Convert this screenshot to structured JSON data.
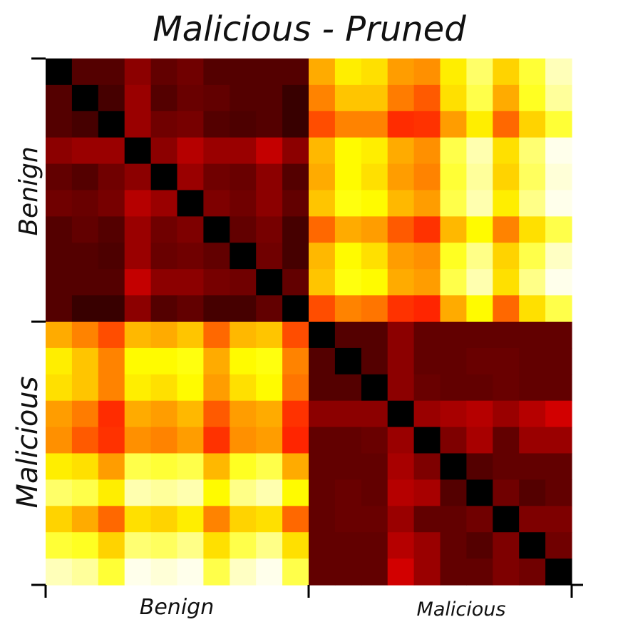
{
  "chart_data": {
    "type": "heatmap",
    "title": "Malicious - Pruned",
    "colormap": "hot",
    "value_range": [
      0,
      1
    ],
    "row_groups": [
      {
        "label": "Benign",
        "count": 10
      },
      {
        "label": "Malicious",
        "count": 10
      }
    ],
    "col_groups": [
      {
        "label": "Benign",
        "count": 10
      },
      {
        "label": "Malicious",
        "count": 10
      }
    ],
    "matrix": [
      [
        0.0,
        0.12,
        0.12,
        0.2,
        0.14,
        0.16,
        0.12,
        0.12,
        0.12,
        0.12,
        0.62,
        0.72,
        0.7,
        0.6,
        0.58,
        0.72,
        0.85,
        0.68,
        0.8,
        0.93
      ],
      [
        0.12,
        0.0,
        0.1,
        0.22,
        0.12,
        0.15,
        0.14,
        0.12,
        0.12,
        0.08,
        0.56,
        0.66,
        0.66,
        0.55,
        0.5,
        0.7,
        0.82,
        0.62,
        0.78,
        0.9
      ],
      [
        0.12,
        0.1,
        0.0,
        0.22,
        0.16,
        0.17,
        0.12,
        0.11,
        0.12,
        0.08,
        0.48,
        0.56,
        0.56,
        0.43,
        0.44,
        0.6,
        0.72,
        0.52,
        0.68,
        0.8
      ],
      [
        0.2,
        0.22,
        0.22,
        0.0,
        0.2,
        0.26,
        0.22,
        0.22,
        0.28,
        0.2,
        0.64,
        0.74,
        0.72,
        0.62,
        0.58,
        0.82,
        0.92,
        0.7,
        0.86,
        0.98
      ],
      [
        0.14,
        0.12,
        0.16,
        0.2,
        0.0,
        0.22,
        0.16,
        0.15,
        0.2,
        0.12,
        0.62,
        0.74,
        0.7,
        0.6,
        0.56,
        0.8,
        0.9,
        0.68,
        0.84,
        0.96
      ],
      [
        0.16,
        0.15,
        0.17,
        0.26,
        0.22,
        0.0,
        0.18,
        0.16,
        0.2,
        0.14,
        0.66,
        0.76,
        0.74,
        0.64,
        0.6,
        0.82,
        0.92,
        0.72,
        0.88,
        0.98
      ],
      [
        0.12,
        0.14,
        0.12,
        0.22,
        0.16,
        0.18,
        0.0,
        0.14,
        0.17,
        0.1,
        0.52,
        0.62,
        0.6,
        0.5,
        0.44,
        0.64,
        0.74,
        0.56,
        0.7,
        0.82
      ],
      [
        0.12,
        0.12,
        0.11,
        0.22,
        0.15,
        0.16,
        0.14,
        0.0,
        0.16,
        0.1,
        0.64,
        0.74,
        0.7,
        0.6,
        0.58,
        0.78,
        0.88,
        0.68,
        0.82,
        0.94
      ],
      [
        0.12,
        0.12,
        0.12,
        0.28,
        0.2,
        0.2,
        0.17,
        0.16,
        0.0,
        0.14,
        0.66,
        0.76,
        0.74,
        0.62,
        0.6,
        0.82,
        0.92,
        0.7,
        0.88,
        0.98
      ],
      [
        0.12,
        0.08,
        0.08,
        0.2,
        0.12,
        0.14,
        0.1,
        0.1,
        0.14,
        0.0,
        0.48,
        0.56,
        0.54,
        0.44,
        0.42,
        0.62,
        0.74,
        0.52,
        0.7,
        0.82
      ],
      [
        0.62,
        0.56,
        0.48,
        0.64,
        0.62,
        0.66,
        0.52,
        0.64,
        0.66,
        0.48,
        0.0,
        0.12,
        0.12,
        0.2,
        0.14,
        0.14,
        0.14,
        0.14,
        0.14,
        0.14
      ],
      [
        0.72,
        0.66,
        0.56,
        0.74,
        0.74,
        0.76,
        0.62,
        0.74,
        0.76,
        0.56,
        0.12,
        0.0,
        0.12,
        0.2,
        0.14,
        0.14,
        0.15,
        0.15,
        0.14,
        0.14
      ],
      [
        0.7,
        0.66,
        0.56,
        0.72,
        0.7,
        0.74,
        0.6,
        0.7,
        0.74,
        0.54,
        0.12,
        0.12,
        0.0,
        0.2,
        0.15,
        0.14,
        0.14,
        0.15,
        0.14,
        0.14
      ],
      [
        0.6,
        0.55,
        0.43,
        0.62,
        0.6,
        0.64,
        0.5,
        0.6,
        0.62,
        0.44,
        0.2,
        0.2,
        0.2,
        0.0,
        0.22,
        0.24,
        0.26,
        0.22,
        0.26,
        0.3
      ],
      [
        0.58,
        0.5,
        0.44,
        0.58,
        0.56,
        0.6,
        0.44,
        0.58,
        0.6,
        0.42,
        0.14,
        0.14,
        0.15,
        0.22,
        0.0,
        0.18,
        0.24,
        0.14,
        0.22,
        0.22
      ],
      [
        0.72,
        0.7,
        0.6,
        0.82,
        0.8,
        0.82,
        0.64,
        0.78,
        0.82,
        0.62,
        0.14,
        0.14,
        0.14,
        0.24,
        0.18,
        0.0,
        0.12,
        0.14,
        0.14,
        0.14
      ],
      [
        0.85,
        0.82,
        0.72,
        0.92,
        0.9,
        0.92,
        0.74,
        0.88,
        0.92,
        0.74,
        0.14,
        0.15,
        0.14,
        0.26,
        0.24,
        0.12,
        0.0,
        0.16,
        0.12,
        0.14
      ],
      [
        0.68,
        0.62,
        0.52,
        0.7,
        0.68,
        0.72,
        0.56,
        0.68,
        0.7,
        0.52,
        0.14,
        0.15,
        0.15,
        0.22,
        0.14,
        0.14,
        0.16,
        0.0,
        0.18,
        0.18
      ],
      [
        0.8,
        0.78,
        0.68,
        0.86,
        0.84,
        0.88,
        0.7,
        0.82,
        0.88,
        0.7,
        0.14,
        0.14,
        0.14,
        0.26,
        0.22,
        0.14,
        0.12,
        0.18,
        0.0,
        0.16
      ],
      [
        0.93,
        0.9,
        0.8,
        0.98,
        0.96,
        0.98,
        0.82,
        0.94,
        0.98,
        0.82,
        0.14,
        0.14,
        0.14,
        0.3,
        0.22,
        0.14,
        0.14,
        0.18,
        0.16,
        0.0
      ]
    ]
  }
}
